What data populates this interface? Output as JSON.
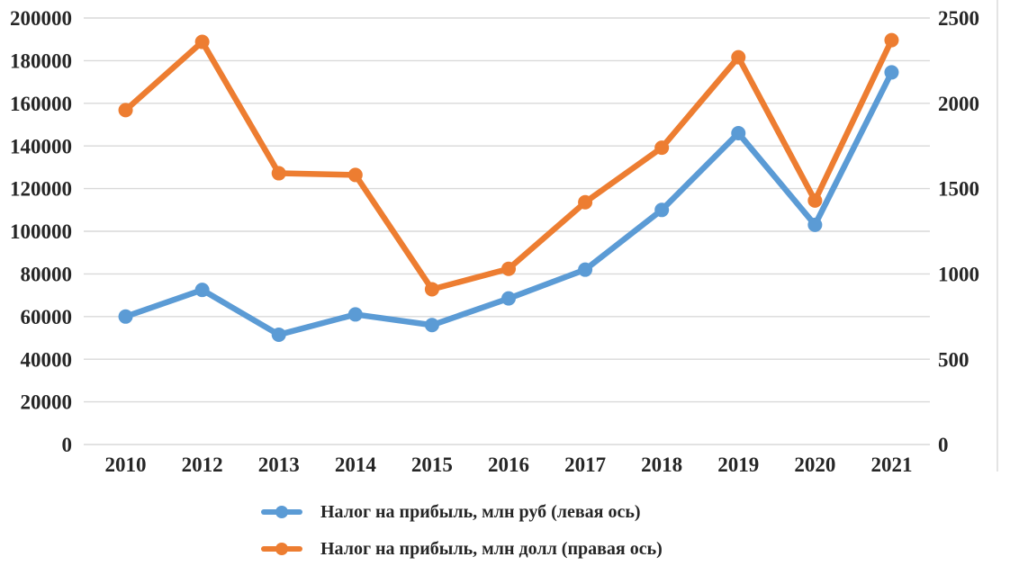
{
  "chart_data": {
    "type": "line",
    "categories": [
      "2010",
      "2012",
      "2013",
      "2014",
      "2015",
      "2016",
      "2017",
      "2018",
      "2019",
      "2020",
      "2021"
    ],
    "series": [
      {
        "name": "Налог на прибыль, млн руб (левая ось)",
        "axis": "left",
        "color": "#5B9BD5",
        "values": [
          60000,
          72500,
          51500,
          61000,
          56000,
          68500,
          82000,
          110000,
          146000,
          103000,
          174500
        ]
      },
      {
        "name": "Налог на прибыль, млн долл (правая ось)",
        "axis": "right",
        "color": "#ED7D31",
        "values": [
          1960,
          2360,
          1590,
          1580,
          910,
          1030,
          1420,
          1740,
          2270,
          1430,
          2370
        ]
      }
    ],
    "left_axis": {
      "min": 0,
      "max": 200000,
      "step": 20000,
      "tick_labels": [
        "0",
        "20000",
        "40000",
        "60000",
        "80000",
        "100000",
        "120000",
        "140000",
        "160000",
        "180000",
        "200000"
      ]
    },
    "right_axis": {
      "min": 0,
      "max": 2500,
      "step": 500,
      "tick_labels": [
        "0",
        "500",
        "1000",
        "1500",
        "2000",
        "2500"
      ]
    },
    "grid": true,
    "legend_position": "bottom",
    "colors": {
      "gridline": "#D9D9D9",
      "axis_text": "#262626",
      "background": "#FFFFFF"
    }
  }
}
